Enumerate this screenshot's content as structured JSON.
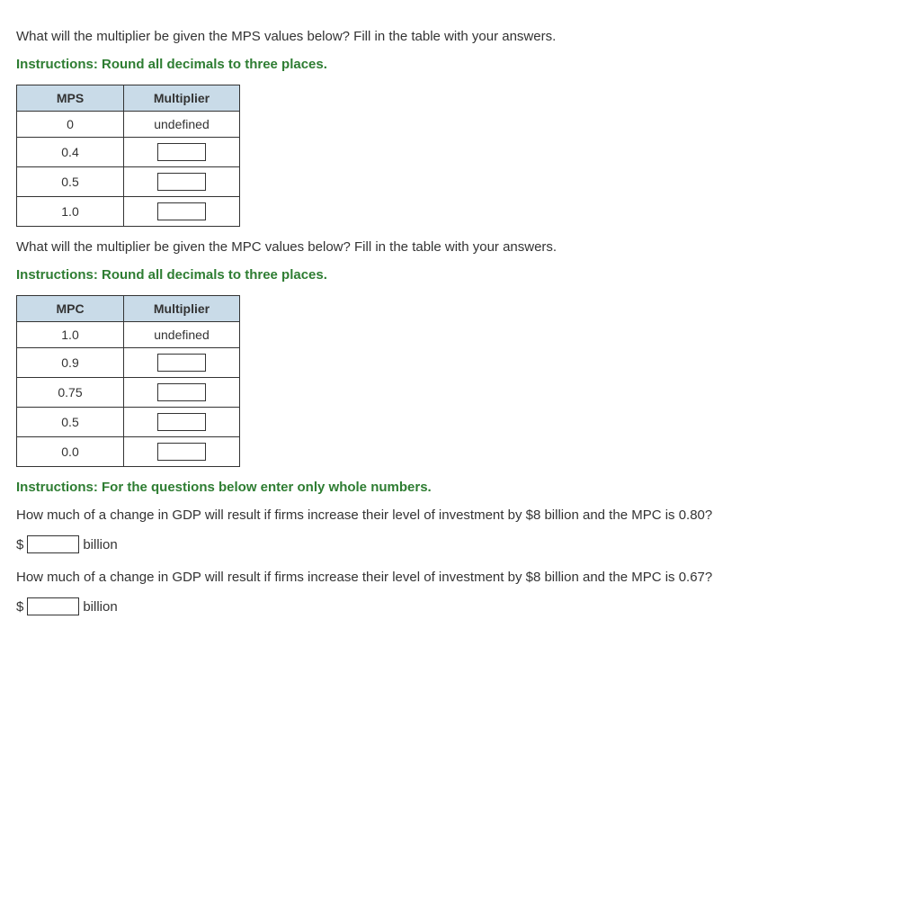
{
  "q1": {
    "prompt": "What will the multiplier be given the MPS values below? Fill in the table with your answers.",
    "instructions": "Instructions: Round all decimals to three places.",
    "table": {
      "header_a": "MPS",
      "header_b": "Multiplier",
      "rows": [
        {
          "a": "0",
          "b_text": "undefined",
          "b_input": false
        },
        {
          "a": "0.4",
          "b_text": "",
          "b_input": true
        },
        {
          "a": "0.5",
          "b_text": "",
          "b_input": true
        },
        {
          "a": "1.0",
          "b_text": "",
          "b_input": true
        }
      ]
    }
  },
  "q2": {
    "prompt": "What will the multiplier be given the MPC values below? Fill in the table with your answers.",
    "instructions": "Instructions: Round all decimals to three places.",
    "table": {
      "header_a": "MPC",
      "header_b": "Multiplier",
      "rows": [
        {
          "a": "1.0",
          "b_text": "undefined",
          "b_input": false
        },
        {
          "a": "0.9",
          "b_text": "",
          "b_input": true
        },
        {
          "a": "0.75",
          "b_text": "",
          "b_input": true
        },
        {
          "a": "0.5",
          "b_text": "",
          "b_input": true
        },
        {
          "a": "0.0",
          "b_text": "",
          "b_input": true
        }
      ]
    }
  },
  "q3": {
    "instructions": "Instructions: For the questions below enter only whole numbers.",
    "sub1": {
      "prompt": "How much of a change in GDP will result if firms increase their level of investment by $8 billion and the MPC is 0.80?",
      "prefix": "$",
      "unit": "billion"
    },
    "sub2": {
      "prompt": "How much of a change in GDP will result if firms increase their level of investment by $8 billion and the MPC is 0.67?",
      "prefix": "$",
      "unit": "billion"
    }
  }
}
